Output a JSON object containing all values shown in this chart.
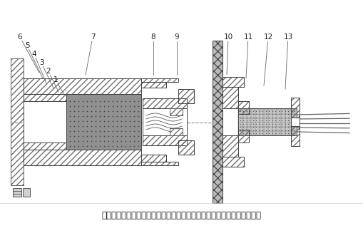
{
  "caption": "圖為本實用新型所提供的壓力測量裝置的一種具體實施方式的結構示意圖",
  "bg_color": "#ffffff",
  "lc": "#404040",
  "hc": "#707070",
  "caption_fontsize": 8.5,
  "label_fontsize": 7.5
}
